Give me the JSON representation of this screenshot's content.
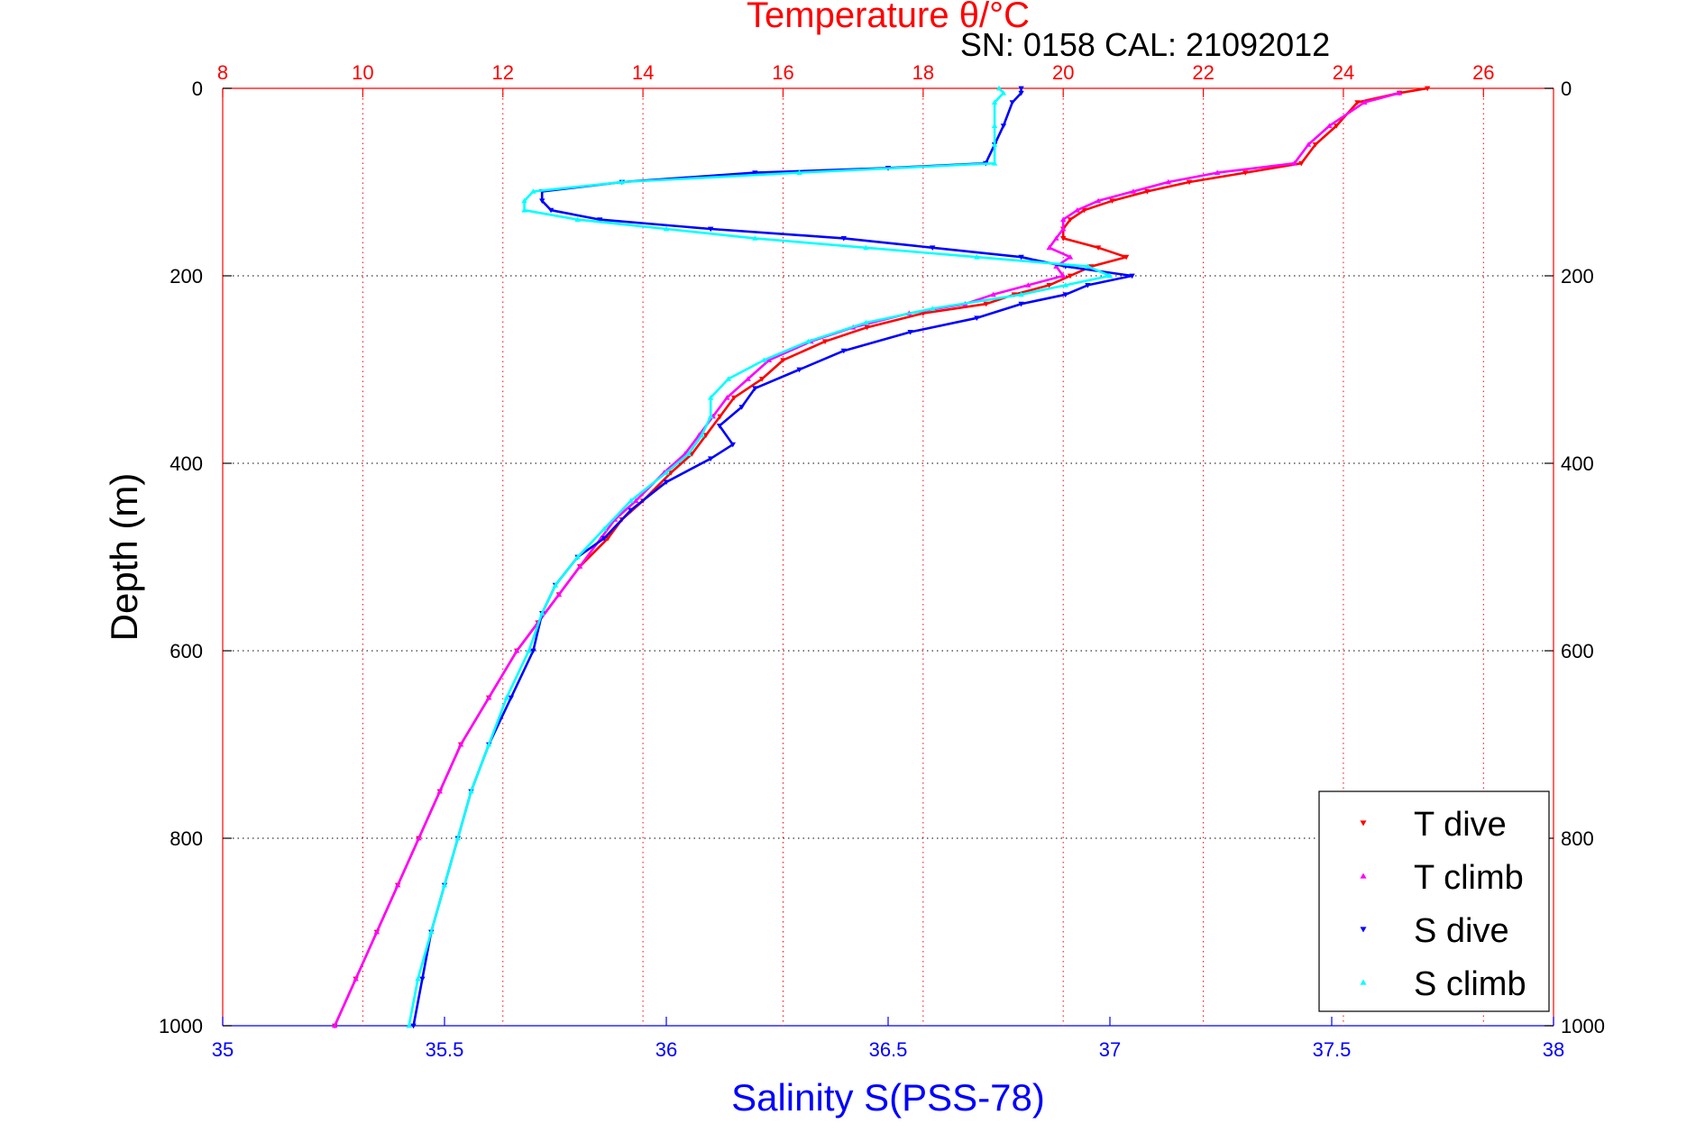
{
  "chart_data": {
    "type": "scatter",
    "title": "Temperature θ/°C",
    "subtitle": "SN: 0158  CAL: 21092012",
    "xlabel": "Salinity S(PSS-78)",
    "ylabel": "Depth (m)",
    "colors": {
      "temperature_axis": "#ff0000",
      "salinity_axis": "#0000ff",
      "T dive": "#ff0000",
      "T climb": "#ff00ff",
      "S dive": "#0000ff",
      "S climb": "#00ffff",
      "hgrid": "#000000"
    },
    "y_axis": {
      "range": [
        0,
        1000
      ],
      "reversed": true,
      "ticks": [
        0,
        200,
        400,
        600,
        800,
        1000
      ],
      "grid": true
    },
    "top_axis": {
      "quantity": "Temperature",
      "range": [
        8,
        27
      ],
      "ticks": [
        8,
        10,
        12,
        14,
        16,
        18,
        20,
        22,
        24,
        26
      ],
      "grid": true
    },
    "bottom_axis": {
      "quantity": "Salinity",
      "range": [
        35,
        38
      ],
      "ticks": [
        "35",
        "35.5",
        "36",
        "36.5",
        "37",
        "37.5",
        "38"
      ],
      "grid": false
    },
    "legend": {
      "placement": "bottom-right",
      "entries": [
        "T dive",
        "T climb",
        "S dive",
        "S climb"
      ]
    },
    "series": [
      {
        "name": "T dive",
        "axis": "temperature",
        "marker": "triangle-down",
        "points": [
          [
            25.2,
            0
          ],
          [
            24.8,
            5
          ],
          [
            24.2,
            15
          ],
          [
            23.9,
            40
          ],
          [
            23.6,
            60
          ],
          [
            23.4,
            80
          ],
          [
            22.6,
            90
          ],
          [
            21.8,
            100
          ],
          [
            21.2,
            110
          ],
          [
            20.7,
            120
          ],
          [
            20.3,
            130
          ],
          [
            20.1,
            140
          ],
          [
            20.0,
            150
          ],
          [
            20.0,
            160
          ],
          [
            20.5,
            170
          ],
          [
            20.9,
            180
          ],
          [
            20.4,
            190
          ],
          [
            20.1,
            200
          ],
          [
            19.8,
            210
          ],
          [
            19.3,
            220
          ],
          [
            18.9,
            230
          ],
          [
            18.0,
            240
          ],
          [
            17.2,
            255
          ],
          [
            16.6,
            270
          ],
          [
            16.0,
            290
          ],
          [
            15.7,
            310
          ],
          [
            15.3,
            330
          ],
          [
            15.1,
            350
          ],
          [
            14.9,
            370
          ],
          [
            14.7,
            390
          ],
          [
            14.4,
            410
          ],
          [
            14.0,
            440
          ],
          [
            13.7,
            460
          ],
          [
            13.5,
            480
          ],
          [
            13.1,
            510
          ],
          [
            12.8,
            540
          ],
          [
            12.5,
            570
          ],
          [
            12.2,
            600
          ],
          [
            11.8,
            650
          ],
          [
            11.4,
            700
          ],
          [
            11.1,
            750
          ],
          [
            10.8,
            800
          ],
          [
            10.5,
            850
          ],
          [
            10.2,
            900
          ],
          [
            9.9,
            950
          ],
          [
            9.6,
            1000
          ]
        ]
      },
      {
        "name": "T climb",
        "axis": "temperature",
        "marker": "triangle-up",
        "points": [
          [
            24.8,
            5
          ],
          [
            24.3,
            15
          ],
          [
            23.8,
            40
          ],
          [
            23.5,
            60
          ],
          [
            23.3,
            80
          ],
          [
            22.2,
            90
          ],
          [
            21.5,
            100
          ],
          [
            21.0,
            110
          ],
          [
            20.5,
            120
          ],
          [
            20.2,
            130
          ],
          [
            20.0,
            140
          ],
          [
            20.0,
            150
          ],
          [
            19.9,
            160
          ],
          [
            19.8,
            170
          ],
          [
            20.1,
            180
          ],
          [
            19.9,
            190
          ],
          [
            20.0,
            200
          ],
          [
            19.5,
            210
          ],
          [
            19.0,
            220
          ],
          [
            18.6,
            230
          ],
          [
            17.8,
            240
          ],
          [
            17.0,
            255
          ],
          [
            16.4,
            270
          ],
          [
            15.8,
            290
          ],
          [
            15.5,
            310
          ],
          [
            15.2,
            330
          ],
          [
            15.0,
            350
          ],
          [
            14.8,
            370
          ],
          [
            14.6,
            390
          ],
          [
            14.3,
            410
          ],
          [
            13.9,
            440
          ],
          [
            13.6,
            460
          ],
          [
            13.4,
            480
          ],
          [
            13.1,
            510
          ],
          [
            12.8,
            540
          ],
          [
            12.5,
            570
          ],
          [
            12.2,
            600
          ],
          [
            11.8,
            650
          ],
          [
            11.4,
            700
          ],
          [
            11.1,
            750
          ],
          [
            10.8,
            800
          ],
          [
            10.5,
            850
          ],
          [
            10.2,
            900
          ],
          [
            9.9,
            950
          ],
          [
            9.6,
            1000
          ]
        ]
      },
      {
        "name": "S dive",
        "axis": "salinity",
        "marker": "triangle-down",
        "points": [
          [
            36.8,
            0
          ],
          [
            36.8,
            5
          ],
          [
            36.78,
            15
          ],
          [
            36.76,
            40
          ],
          [
            36.74,
            60
          ],
          [
            36.72,
            80
          ],
          [
            36.5,
            85
          ],
          [
            36.2,
            90
          ],
          [
            35.9,
            100
          ],
          [
            35.72,
            110
          ],
          [
            35.72,
            120
          ],
          [
            35.74,
            130
          ],
          [
            35.85,
            140
          ],
          [
            36.1,
            150
          ],
          [
            36.4,
            160
          ],
          [
            36.6,
            170
          ],
          [
            36.8,
            180
          ],
          [
            36.9,
            190
          ],
          [
            37.05,
            200
          ],
          [
            36.95,
            210
          ],
          [
            36.9,
            220
          ],
          [
            36.8,
            230
          ],
          [
            36.7,
            245
          ],
          [
            36.55,
            260
          ],
          [
            36.4,
            280
          ],
          [
            36.3,
            300
          ],
          [
            36.2,
            320
          ],
          [
            36.17,
            340
          ],
          [
            36.12,
            360
          ],
          [
            36.15,
            380
          ],
          [
            36.1,
            395
          ],
          [
            36.0,
            420
          ],
          [
            35.92,
            450
          ],
          [
            35.86,
            480
          ],
          [
            35.8,
            500
          ],
          [
            35.75,
            530
          ],
          [
            35.72,
            560
          ],
          [
            35.7,
            600
          ],
          [
            35.65,
            650
          ],
          [
            35.6,
            700
          ],
          [
            35.56,
            750
          ],
          [
            35.53,
            800
          ],
          [
            35.5,
            850
          ],
          [
            35.47,
            900
          ],
          [
            35.45,
            950
          ],
          [
            35.43,
            1000
          ]
        ]
      },
      {
        "name": "S climb",
        "axis": "salinity",
        "marker": "triangle-up",
        "points": [
          [
            36.75,
            0
          ],
          [
            36.76,
            5
          ],
          [
            36.74,
            15
          ],
          [
            36.74,
            40
          ],
          [
            36.74,
            60
          ],
          [
            36.74,
            80
          ],
          [
            36.3,
            90
          ],
          [
            35.9,
            100
          ],
          [
            35.7,
            110
          ],
          [
            35.68,
            120
          ],
          [
            35.68,
            130
          ],
          [
            35.8,
            140
          ],
          [
            36.0,
            150
          ],
          [
            36.2,
            160
          ],
          [
            36.45,
            170
          ],
          [
            36.7,
            180
          ],
          [
            36.95,
            190
          ],
          [
            37.0,
            200
          ],
          [
            36.9,
            210
          ],
          [
            36.8,
            220
          ],
          [
            36.6,
            235
          ],
          [
            36.45,
            250
          ],
          [
            36.32,
            270
          ],
          [
            36.22,
            290
          ],
          [
            36.14,
            310
          ],
          [
            36.1,
            330
          ],
          [
            36.1,
            350
          ],
          [
            36.08,
            370
          ],
          [
            36.05,
            390
          ],
          [
            36.0,
            410
          ],
          [
            35.92,
            440
          ],
          [
            35.86,
            470
          ],
          [
            35.8,
            500
          ],
          [
            35.75,
            530
          ],
          [
            35.72,
            560
          ],
          [
            35.69,
            600
          ],
          [
            35.64,
            650
          ],
          [
            35.6,
            700
          ],
          [
            35.56,
            750
          ],
          [
            35.53,
            800
          ],
          [
            35.5,
            850
          ],
          [
            35.47,
            900
          ],
          [
            35.44,
            950
          ],
          [
            35.42,
            1000
          ]
        ]
      }
    ]
  }
}
